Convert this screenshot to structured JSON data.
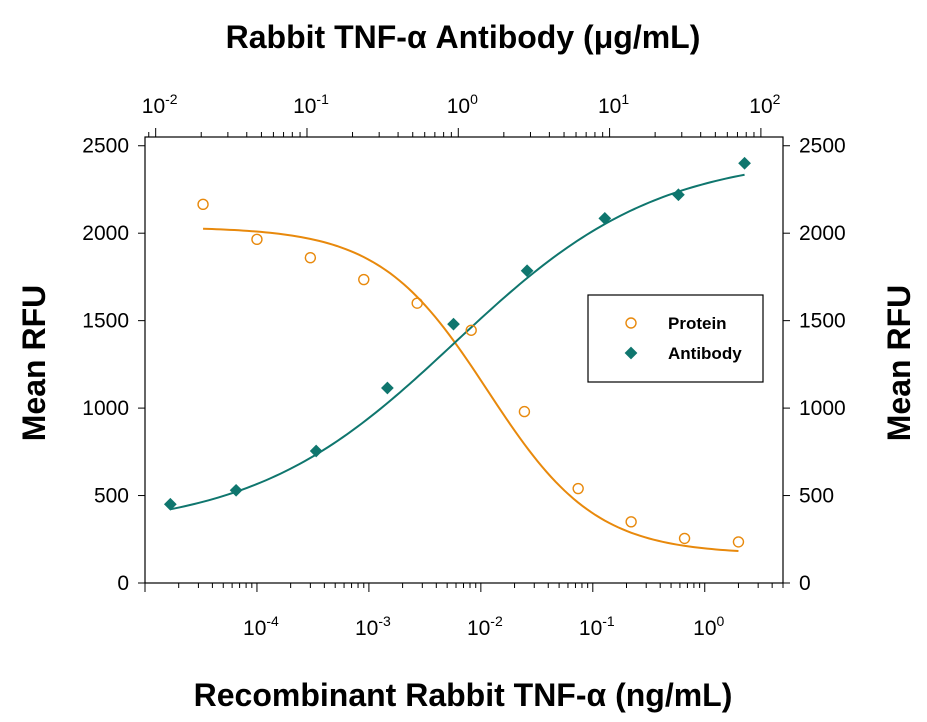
{
  "chart_data": {
    "type": "scatter",
    "top_axis_title": "Rabbit TNF-α Antibody (μg/mL)",
    "bottom_axis_title": "Recombinant Rabbit TNF-α (ng/mL)",
    "ylabel_left": "Mean RFU",
    "ylabel_right": "Mean RFU",
    "x_scale": "log",
    "x_bottom_range": [
      1e-05,
      5
    ],
    "x_top_range": [
      0.0085,
      140
    ],
    "ylim": [
      0,
      2550
    ],
    "y_ticks": [
      0,
      500,
      1000,
      1500,
      2000,
      2500
    ],
    "y_tick_labels": [
      "0",
      "500",
      "1000",
      "1500",
      "2000",
      "2500"
    ],
    "x_bottom_ticks": [
      {
        "base": "10",
        "exp": "-4",
        "value": 0.0001
      },
      {
        "base": "10",
        "exp": "-3",
        "value": 0.001
      },
      {
        "base": "10",
        "exp": "-2",
        "value": 0.01
      },
      {
        "base": "10",
        "exp": "-1",
        "value": 0.1
      },
      {
        "base": "10",
        "exp": "0",
        "value": 1
      }
    ],
    "x_top_ticks": [
      {
        "base": "10",
        "exp": "-2",
        "value": 0.01
      },
      {
        "base": "10",
        "exp": "-1",
        "value": 0.1
      },
      {
        "base": "10",
        "exp": "0",
        "value": 1
      },
      {
        "base": "10",
        "exp": "1",
        "value": 10
      },
      {
        "base": "10",
        "exp": "2",
        "value": 100
      }
    ],
    "grid": false,
    "legend_position": "middle-right",
    "series": [
      {
        "name": "Protein",
        "axis": "bottom",
        "marker": "open-circle",
        "color": "#E8890C",
        "x": [
          3.3e-05,
          0.0001,
          0.0003,
          0.0009,
          0.0027,
          0.0082,
          0.0245,
          0.074,
          0.22,
          0.66,
          2.0
        ],
        "y": [
          2165,
          1965,
          1860,
          1735,
          1600,
          1445,
          980,
          540,
          350,
          255,
          235
        ]
      },
      {
        "name": "Antibody",
        "axis": "top",
        "marker": "filled-diamond",
        "color": "#0F766E",
        "x": [
          0.0125,
          0.034,
          0.115,
          0.34,
          0.93,
          2.85,
          9.3,
          28.5,
          78
        ],
        "y": [
          450,
          530,
          755,
          1115,
          1480,
          1785,
          2085,
          2220,
          2400
        ]
      }
    ],
    "fit_curves": [
      {
        "series": "Protein",
        "bottom": 165,
        "top": 2035,
        "ec50": 0.0115,
        "hill": -0.9
      },
      {
        "series": "Antibody",
        "bottom": 300,
        "top": 2450,
        "ec50": 0.95,
        "hill": 0.65
      }
    ]
  }
}
